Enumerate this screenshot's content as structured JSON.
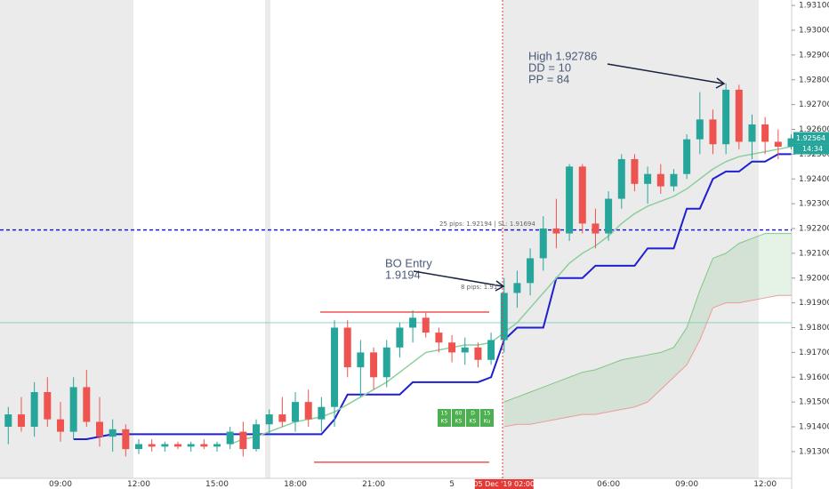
{
  "chart_data": {
    "type": "candlestick",
    "categories": [
      null,
      null,
      null,
      null,
      "09:00",
      null,
      null,
      null,
      null,
      null,
      "12:00",
      null,
      null,
      null,
      null,
      null,
      "15:00",
      null,
      null,
      null,
      null,
      null,
      "18:00",
      null,
      null,
      null,
      null,
      null,
      "21:00",
      null,
      null,
      null,
      null,
      null,
      "5",
      null,
      null,
      null,
      "05 Dec '19  02:00",
      null,
      null,
      null,
      null,
      null,
      null,
      null,
      "06:00",
      null,
      null,
      null,
      null,
      null,
      "09:00",
      null,
      null,
      null,
      null,
      null,
      "12:00",
      null,
      null
    ],
    "ohlc": [
      [
        1.914,
        1.9148,
        1.9133,
        1.9145
      ],
      [
        1.9145,
        1.9152,
        1.9138,
        1.914
      ],
      [
        1.914,
        1.9158,
        1.9136,
        1.9154
      ],
      [
        1.9154,
        1.916,
        1.914,
        1.9143
      ],
      [
        1.9143,
        1.915,
        1.9134,
        1.9138
      ],
      [
        1.9138,
        1.916,
        1.9135,
        1.9156
      ],
      [
        1.9156,
        1.9163,
        1.914,
        1.9142
      ],
      [
        1.9142,
        1.9152,
        1.9132,
        1.9136
      ],
      [
        1.9136,
        1.9143,
        1.913,
        1.9139
      ],
      [
        1.9139,
        1.9141,
        1.9128,
        1.9131
      ],
      [
        1.9131,
        1.9135,
        1.9129,
        1.9133
      ],
      [
        1.9133,
        1.9135,
        1.913,
        1.9132
      ],
      [
        1.9132,
        1.9134,
        1.913,
        1.9133
      ],
      [
        1.9133,
        1.9134,
        1.9131,
        1.9132
      ],
      [
        1.9132,
        1.9134,
        1.913,
        1.9133
      ],
      [
        1.9133,
        1.9135,
        1.9131,
        1.9132
      ],
      [
        1.9132,
        1.9134,
        1.913,
        1.9133
      ],
      [
        1.9133,
        1.914,
        1.9131,
        1.9138
      ],
      [
        1.9138,
        1.9142,
        1.9128,
        1.9131
      ],
      [
        1.9131,
        1.9143,
        1.913,
        1.9141
      ],
      [
        1.9141,
        1.9147,
        1.9137,
        1.9145
      ],
      [
        1.9145,
        1.9152,
        1.914,
        1.9142
      ],
      [
        1.9142,
        1.9154,
        1.9138,
        1.915
      ],
      [
        1.915,
        1.9155,
        1.914,
        1.9143
      ],
      [
        1.9143,
        1.9152,
        1.9138,
        1.9148
      ],
      [
        1.9148,
        1.9183,
        1.914,
        1.918
      ],
      [
        1.918,
        1.9183,
        1.916,
        1.9164
      ],
      [
        1.9164,
        1.9175,
        1.9152,
        1.917
      ],
      [
        1.917,
        1.9172,
        1.9155,
        1.916
      ],
      [
        1.916,
        1.9175,
        1.9156,
        1.9172
      ],
      [
        1.9172,
        1.9182,
        1.9168,
        1.918
      ],
      [
        1.918,
        1.9187,
        1.9174,
        1.9184
      ],
      [
        1.9184,
        1.9186,
        1.9176,
        1.9178
      ],
      [
        1.9178,
        1.918,
        1.917,
        1.9174
      ],
      [
        1.9174,
        1.9177,
        1.9166,
        1.917
      ],
      [
        1.917,
        1.9176,
        1.9165,
        1.9172
      ],
      [
        1.9172,
        1.9174,
        1.9164,
        1.9167
      ],
      [
        1.9167,
        1.9178,
        1.9165,
        1.9175
      ],
      [
        1.9175,
        1.92,
        1.917,
        1.9194
      ],
      [
        1.9194,
        1.9203,
        1.9188,
        1.9198
      ],
      [
        1.9198,
        1.9212,
        1.9193,
        1.9208
      ],
      [
        1.9208,
        1.9225,
        1.9203,
        1.922
      ],
      [
        1.922,
        1.9232,
        1.9212,
        1.9218
      ],
      [
        1.9218,
        1.9246,
        1.9215,
        1.9245
      ],
      [
        1.9245,
        1.9246,
        1.9218,
        1.9222
      ],
      [
        1.9222,
        1.9228,
        1.9212,
        1.9218
      ],
      [
        1.9218,
        1.9235,
        1.9215,
        1.9232
      ],
      [
        1.9232,
        1.925,
        1.9228,
        1.9248
      ],
      [
        1.9248,
        1.925,
        1.9235,
        1.9238
      ],
      [
        1.9238,
        1.9245,
        1.923,
        1.9242
      ],
      [
        1.9242,
        1.9246,
        1.9234,
        1.9237
      ],
      [
        1.9237,
        1.9244,
        1.9235,
        1.9242
      ],
      [
        1.9242,
        1.9258,
        1.924,
        1.9256
      ],
      [
        1.9256,
        1.9275,
        1.925,
        1.9264
      ],
      [
        1.9264,
        1.9268,
        1.925,
        1.9254
      ],
      [
        1.9254,
        1.92786,
        1.925,
        1.9276
      ],
      [
        1.9276,
        1.9278,
        1.9252,
        1.9255
      ],
      [
        1.9255,
        1.9266,
        1.9248,
        1.9262
      ],
      [
        1.9262,
        1.9265,
        1.925,
        1.9255
      ],
      [
        1.9255,
        1.926,
        1.9248,
        1.9253
      ],
      [
        1.9253,
        1.9258,
        1.9252,
        1.92564
      ]
    ],
    "up_color": "#26a69a",
    "down_color": "#ef5350",
    "series": [
      {
        "color": "#1f1fd0",
        "values": [
          null,
          null,
          null,
          null,
          null,
          1.9135,
          1.9135,
          1.9136,
          1.9137,
          1.9137,
          1.9137,
          1.9137,
          1.9137,
          1.9137,
          1.9137,
          1.9137,
          1.9137,
          1.9137,
          1.9137,
          1.9137,
          1.9137,
          1.9137,
          1.9137,
          1.9137,
          1.9137,
          1.9143,
          1.9153,
          1.9153,
          1.9153,
          1.9153,
          1.9153,
          1.9158,
          1.9158,
          1.9158,
          1.9158,
          1.9158,
          1.9158,
          1.916,
          1.9175,
          1.918,
          1.918,
          1.918,
          1.92,
          1.92,
          1.92,
          1.9205,
          1.9205,
          1.9205,
          1.9205,
          1.9212,
          1.9212,
          1.9212,
          1.9228,
          1.9228,
          1.924,
          1.9243,
          1.9243,
          1.9247,
          1.9247,
          1.925,
          1.925
        ]
      },
      {
        "color": "#8ccf9c",
        "values": [
          null,
          null,
          null,
          null,
          null,
          null,
          null,
          null,
          null,
          null,
          null,
          null,
          null,
          null,
          null,
          null,
          null,
          1.9133,
          1.9135,
          1.9136,
          1.9138,
          1.914,
          1.9142,
          1.9143,
          1.9144,
          1.9146,
          1.9149,
          1.9152,
          1.9155,
          1.9158,
          1.9162,
          1.9166,
          1.917,
          1.9171,
          1.9172,
          1.9173,
          1.9173,
          1.9174,
          1.9178,
          1.9182,
          1.9188,
          1.9194,
          1.92,
          1.9206,
          1.921,
          1.9213,
          1.9217,
          1.9222,
          1.9226,
          1.9229,
          1.9231,
          1.9233,
          1.9236,
          1.924,
          1.9244,
          1.9247,
          1.9249,
          1.925,
          1.9251,
          1.9252,
          1.9253
        ]
      }
    ],
    "cloud": {
      "color": "#4caf50",
      "span_a": [
        null,
        null,
        null,
        null,
        null,
        null,
        null,
        null,
        null,
        null,
        null,
        null,
        null,
        null,
        null,
        null,
        null,
        null,
        null,
        null,
        null,
        null,
        null,
        null,
        null,
        null,
        null,
        null,
        null,
        null,
        null,
        null,
        null,
        null,
        null,
        null,
        null,
        null,
        1.915,
        1.9152,
        1.9154,
        1.9156,
        1.9158,
        1.916,
        1.9162,
        1.9163,
        1.9165,
        1.9167,
        1.9168,
        1.9169,
        1.917,
        1.9172,
        1.918,
        1.9195,
        1.9208,
        1.921,
        1.9214,
        1.9216,
        1.9218,
        1.9218,
        1.9218
      ],
      "span_b": [
        null,
        null,
        null,
        null,
        null,
        null,
        null,
        null,
        null,
        null,
        null,
        null,
        null,
        null,
        null,
        null,
        null,
        null,
        null,
        null,
        null,
        null,
        null,
        null,
        null,
        null,
        null,
        null,
        null,
        null,
        null,
        null,
        null,
        null,
        null,
        null,
        null,
        null,
        1.914,
        1.9141,
        1.9141,
        1.9142,
        1.9143,
        1.9144,
        1.9145,
        1.9145,
        1.9146,
        1.9147,
        1.9148,
        1.915,
        1.9155,
        1.916,
        1.9165,
        1.9175,
        1.9188,
        1.919,
        1.919,
        1.9191,
        1.9192,
        1.9193,
        1.9193
      ]
    },
    "hlines": [
      {
        "value": 1.92194,
        "color": "#1f1fd0",
        "dash": true
      },
      {
        "value": 1.9182,
        "color": "#80cbc4",
        "dash": false
      }
    ],
    "red_levels": [
      1.91863,
      1.91257
    ],
    "ylim": [
      1.91192,
      1.93122
    ],
    "yticks": [
      {
        "value": 1.913,
        "label": "1.91300"
      },
      {
        "value": 1.914,
        "label": "1.91400"
      },
      {
        "value": 1.915,
        "label": "1.91500"
      },
      {
        "value": 1.916,
        "label": "1.91600"
      },
      {
        "value": 1.917,
        "label": "1.91700"
      },
      {
        "value": 1.918,
        "label": "1.91800"
      },
      {
        "value": 1.919,
        "label": "1.91900"
      },
      {
        "value": 1.92,
        "label": "1.92000"
      },
      {
        "value": 1.921,
        "label": "1.92100"
      },
      {
        "value": 1.922,
        "label": "1.92200"
      },
      {
        "value": 1.923,
        "label": "1.92300"
      },
      {
        "value": 1.924,
        "label": "1.92400"
      },
      {
        "value": 1.925,
        "label": "1.92500"
      },
      {
        "value": 1.926,
        "label": "1.92600"
      },
      {
        "value": 1.927,
        "label": "1.92700"
      },
      {
        "value": 1.928,
        "label": "1.92800"
      },
      {
        "value": 1.929,
        "label": "1.92900"
      },
      {
        "value": 1.93,
        "label": "1.93000"
      },
      {
        "value": 1.931,
        "label": "1.93100"
      }
    ],
    "last_price": 1.92564,
    "countdown": "14:34",
    "annotations": {
      "high": "High 1.92786",
      "dd": "DD = 10",
      "pp": "PP = 84",
      "bo": "BO Entry",
      "bo_price": "1.9194",
      "tp_label": "25 pips: 1.92194 | SL: 1.91694",
      "entry_label": "8 pips: 1.91"
    },
    "widget": [
      [
        "15",
        "KS"
      ],
      [
        "60",
        "KS"
      ],
      [
        "D",
        "KS"
      ],
      [
        "15",
        "Ku"
      ]
    ]
  }
}
